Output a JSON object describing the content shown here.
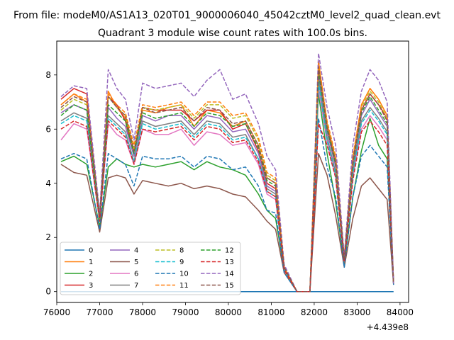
{
  "suptitle": "From file: modeM0/AS1A13_020T01_9000006040_45042cztM0_level2_quad_clean.evt",
  "chart_data": {
    "type": "line",
    "title": "Quadrant 3 module wise count rates with 100.0s bins.",
    "xlabel": "",
    "ylabel": "",
    "x_offset_label": "+4.439e8",
    "xlim": [
      76000,
      84200
    ],
    "ylim": [
      -0.4,
      9.25
    ],
    "x_ticks": [
      76000,
      77000,
      78000,
      79000,
      80000,
      81000,
      82000,
      83000,
      84000
    ],
    "x_tick_labels": [
      "76000",
      "77000",
      "78000",
      "79000",
      "80000",
      "81000",
      "82000",
      "83000",
      "84000"
    ],
    "y_ticks": [
      0,
      2,
      4,
      6,
      8
    ],
    "y_tick_labels": [
      "0",
      "2",
      "4",
      "6",
      "8"
    ],
    "grid": false,
    "legend_position": "lower-left",
    "legend_columns": 4,
    "x": [
      76100,
      76400,
      76700,
      77000,
      77200,
      77400,
      77600,
      77800,
      78000,
      78300,
      78600,
      78900,
      79200,
      79500,
      79800,
      80100,
      80400,
      80700,
      80900,
      81100,
      81300,
      81600,
      81900,
      82100,
      82300,
      82500,
      82700,
      82900,
      83100,
      83300,
      83500,
      83700,
      83850
    ],
    "series": [
      {
        "name": "0",
        "color": "#1f77b4",
        "dash": "solid",
        "values": [
          0,
          0,
          0,
          0,
          0,
          0,
          0,
          0,
          0,
          0,
          0,
          0,
          0,
          0,
          0,
          0,
          0,
          0,
          0,
          0,
          0,
          0,
          0,
          0,
          0,
          0,
          0,
          0,
          0,
          0,
          0,
          0,
          0
        ]
      },
      {
        "name": "1",
        "color": "#ff7f0e",
        "dash": "solid",
        "values": [
          6.9,
          7.3,
          7.0,
          2.8,
          7.4,
          6.8,
          6.4,
          5.2,
          6.7,
          6.6,
          6.8,
          6.9,
          6.1,
          6.7,
          6.6,
          6.1,
          6.3,
          5.4,
          4.2,
          4.0,
          0.9,
          0,
          0,
          8.5,
          6.2,
          4.9,
          1.2,
          4.9,
          6.9,
          7.5,
          7.1,
          6.5,
          0.3
        ]
      },
      {
        "name": "2",
        "color": "#2ca02c",
        "dash": "solid",
        "values": [
          4.8,
          5.0,
          4.7,
          2.4,
          4.6,
          4.9,
          4.7,
          4.6,
          4.7,
          4.6,
          4.7,
          4.8,
          4.5,
          4.8,
          4.6,
          4.5,
          4.3,
          3.6,
          3.0,
          2.7,
          0.8,
          0,
          0,
          7.3,
          5.1,
          3.3,
          1.0,
          3.5,
          5.2,
          6.4,
          5.4,
          4.9,
          0.3
        ]
      },
      {
        "name": "3",
        "color": "#d62728",
        "dash": "solid",
        "values": [
          7.1,
          7.5,
          7.3,
          2.7,
          7.2,
          6.9,
          6.3,
          5.0,
          6.8,
          6.7,
          6.7,
          6.7,
          6.3,
          6.7,
          6.7,
          6.0,
          6.2,
          5.2,
          4.0,
          3.8,
          0.9,
          0,
          0,
          8.2,
          6.1,
          4.7,
          1.2,
          4.8,
          6.7,
          7.3,
          6.9,
          6.4,
          0.3
        ]
      },
      {
        "name": "4",
        "color": "#9467bd",
        "dash": "solid",
        "values": [
          6.6,
          6.9,
          6.7,
          2.7,
          6.8,
          6.4,
          6.1,
          5.0,
          6.5,
          6.3,
          6.5,
          6.5,
          6.0,
          6.5,
          6.4,
          5.9,
          6.0,
          5.1,
          3.9,
          3.7,
          0.9,
          0,
          0,
          8.0,
          5.9,
          4.6,
          1.2,
          4.6,
          6.5,
          7.1,
          6.6,
          6.1,
          0.3
        ]
      },
      {
        "name": "5",
        "color": "#8c564b",
        "dash": "solid",
        "values": [
          4.7,
          4.4,
          4.3,
          2.2,
          4.2,
          4.3,
          4.2,
          3.6,
          4.1,
          4.0,
          3.9,
          4.0,
          3.8,
          3.9,
          3.8,
          3.6,
          3.5,
          3.0,
          2.6,
          2.3,
          0.7,
          0,
          0,
          5.1,
          4.3,
          2.8,
          0.9,
          2.7,
          3.9,
          4.2,
          3.8,
          3.4,
          0.25
        ]
      },
      {
        "name": "6",
        "color": "#e377c2",
        "dash": "solid",
        "values": [
          5.6,
          6.2,
          6.0,
          2.6,
          6.2,
          5.8,
          5.6,
          4.7,
          6.0,
          5.8,
          5.8,
          6.0,
          5.4,
          5.9,
          5.8,
          5.4,
          5.5,
          4.7,
          3.6,
          3.4,
          0.8,
          0,
          0,
          7.5,
          5.5,
          4.2,
          1.1,
          4.2,
          6.0,
          6.5,
          6.1,
          5.6,
          0.3
        ]
      },
      {
        "name": "7",
        "color": "#7f7f7f",
        "dash": "solid",
        "values": [
          6.3,
          6.6,
          6.4,
          2.6,
          6.5,
          6.2,
          5.9,
          4.8,
          6.3,
          6.1,
          6.2,
          6.3,
          5.8,
          6.3,
          6.2,
          5.7,
          5.8,
          4.9,
          3.8,
          3.6,
          0.9,
          0,
          0,
          7.8,
          5.7,
          4.4,
          1.1,
          4.4,
          6.3,
          6.8,
          6.4,
          5.9,
          0.3
        ]
      },
      {
        "name": "8",
        "color": "#bcbd22",
        "dash": "dashed",
        "values": [
          6.7,
          7.1,
          6.9,
          2.8,
          7.2,
          6.8,
          6.5,
          5.3,
          6.8,
          6.7,
          6.8,
          6.9,
          6.4,
          6.9,
          6.9,
          6.4,
          6.5,
          5.6,
          4.3,
          4.1,
          0.9,
          0,
          0,
          8.4,
          6.2,
          4.9,
          1.2,
          4.9,
          6.8,
          7.4,
          7.0,
          6.4,
          0.3
        ]
      },
      {
        "name": "9",
        "color": "#17becf",
        "dash": "dashed",
        "values": [
          6.2,
          6.5,
          6.3,
          2.6,
          6.4,
          6.1,
          5.8,
          4.8,
          6.2,
          6.0,
          6.1,
          6.2,
          5.7,
          6.2,
          6.1,
          5.6,
          5.7,
          4.9,
          3.7,
          3.5,
          0.8,
          0,
          0,
          7.7,
          5.6,
          4.3,
          1.1,
          4.3,
          6.2,
          6.7,
          6.3,
          5.8,
          0.3
        ]
      },
      {
        "name": "10",
        "color": "#1f77b4",
        "dash": "dashed",
        "values": [
          4.9,
          5.1,
          4.9,
          2.3,
          5.1,
          4.9,
          4.7,
          3.9,
          5.0,
          4.9,
          4.9,
          5.0,
          4.6,
          5.0,
          4.9,
          4.5,
          4.6,
          3.9,
          3.0,
          2.9,
          0.7,
          0,
          0,
          6.4,
          4.6,
          3.5,
          0.9,
          3.5,
          5.0,
          5.4,
          5.0,
          4.6,
          0.25
        ]
      },
      {
        "name": "11",
        "color": "#ff7f0e",
        "dash": "dashed",
        "values": [
          6.9,
          7.3,
          7.1,
          2.8,
          7.3,
          6.9,
          6.6,
          5.4,
          6.9,
          6.8,
          6.9,
          7.0,
          6.5,
          7.0,
          7.0,
          6.5,
          6.6,
          5.7,
          4.4,
          4.2,
          0.9,
          0,
          0,
          8.5,
          6.3,
          5.0,
          1.2,
          5.0,
          6.9,
          7.5,
          7.1,
          6.5,
          0.3
        ]
      },
      {
        "name": "12",
        "color": "#2ca02c",
        "dash": "dashed",
        "values": [
          6.5,
          6.9,
          6.7,
          2.7,
          6.9,
          6.6,
          6.3,
          5.1,
          6.6,
          6.4,
          6.5,
          6.6,
          6.1,
          6.6,
          6.5,
          6.1,
          6.2,
          5.3,
          4.1,
          3.9,
          0.9,
          0,
          0,
          8.1,
          6.0,
          4.7,
          1.2,
          4.7,
          6.6,
          7.2,
          6.7,
          6.2,
          0.3
        ]
      },
      {
        "name": "13",
        "color": "#d62728",
        "dash": "dashed",
        "values": [
          6.0,
          6.3,
          6.1,
          2.6,
          6.3,
          6.0,
          5.7,
          4.7,
          6.0,
          5.9,
          6.0,
          6.1,
          5.6,
          6.1,
          6.0,
          5.5,
          5.6,
          4.8,
          3.7,
          3.5,
          0.8,
          0,
          0,
          6.2,
          5.4,
          4.2,
          1.1,
          4.1,
          5.9,
          6.3,
          5.9,
          5.4,
          0.3
        ]
      },
      {
        "name": "14",
        "color": "#9467bd",
        "dash": "dashed",
        "values": [
          7.2,
          7.6,
          7.5,
          2.9,
          8.2,
          7.5,
          7.1,
          5.6,
          7.7,
          7.5,
          7.6,
          7.7,
          7.2,
          7.8,
          8.2,
          7.1,
          7.3,
          6.2,
          5.0,
          4.5,
          1.0,
          0,
          0,
          8.8,
          6.8,
          5.4,
          1.3,
          5.4,
          7.4,
          8.2,
          7.8,
          7.0,
          0.3
        ]
      },
      {
        "name": "15",
        "color": "#8c564b",
        "dash": "dashed",
        "values": [
          6.8,
          7.2,
          7.0,
          2.8,
          7.2,
          6.8,
          6.5,
          5.2,
          6.8,
          6.6,
          6.7,
          6.8,
          6.3,
          6.8,
          6.7,
          6.2,
          6.3,
          5.4,
          4.2,
          4.0,
          0.9,
          0,
          0,
          8.3,
          6.1,
          4.8,
          1.2,
          4.8,
          6.7,
          7.3,
          6.9,
          6.3,
          0.3
        ]
      }
    ]
  }
}
